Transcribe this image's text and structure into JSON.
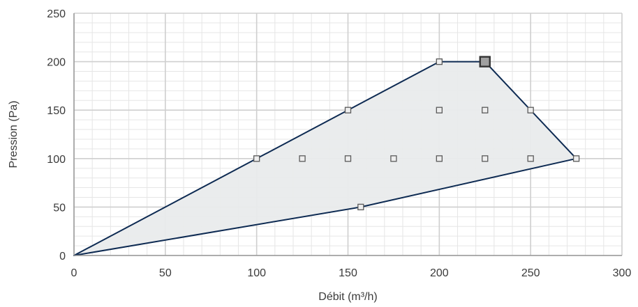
{
  "chart_data": {
    "type": "scatter",
    "title": "",
    "xlabel": "Débit (m³/h)",
    "ylabel": "Pression (Pa)",
    "xlim": [
      0,
      300
    ],
    "ylim": [
      0,
      250
    ],
    "x_ticks": [
      0,
      50,
      100,
      150,
      200,
      250,
      300
    ],
    "y_ticks": [
      0,
      50,
      100,
      150,
      200,
      250
    ],
    "x_minor_step": 10,
    "y_minor_step": 10,
    "grid": true,
    "legend": "none",
    "envelope": {
      "description": "operating range polygon",
      "points": [
        [
          0,
          0
        ],
        [
          100,
          100
        ],
        [
          200,
          200
        ],
        [
          225,
          200
        ],
        [
          275,
          100
        ],
        [
          157,
          50
        ],
        [
          0,
          0
        ]
      ]
    },
    "points": [
      {
        "x": 100,
        "y": 100
      },
      {
        "x": 125,
        "y": 100
      },
      {
        "x": 150,
        "y": 100
      },
      {
        "x": 175,
        "y": 100
      },
      {
        "x": 200,
        "y": 100
      },
      {
        "x": 225,
        "y": 100
      },
      {
        "x": 250,
        "y": 100
      },
      {
        "x": 275,
        "y": 100
      },
      {
        "x": 150,
        "y": 150
      },
      {
        "x": 200,
        "y": 150
      },
      {
        "x": 225,
        "y": 150
      },
      {
        "x": 250,
        "y": 150
      },
      {
        "x": 200,
        "y": 200
      },
      {
        "x": 157,
        "y": 50
      }
    ],
    "highlighted_point": {
      "x": 225,
      "y": 200
    },
    "colors": {
      "envelope_stroke": "#0d2a52",
      "envelope_fill": "#e9ebec",
      "marker_stroke": "#5a5a5a",
      "marker_fill": "#eeeeee",
      "highlight_fill": "#a0a0a0",
      "highlight_stroke": "#333333",
      "major_grid": "#cfcfcf",
      "minor_grid": "#e6e6e6",
      "axis": "#9a9a9a"
    }
  }
}
